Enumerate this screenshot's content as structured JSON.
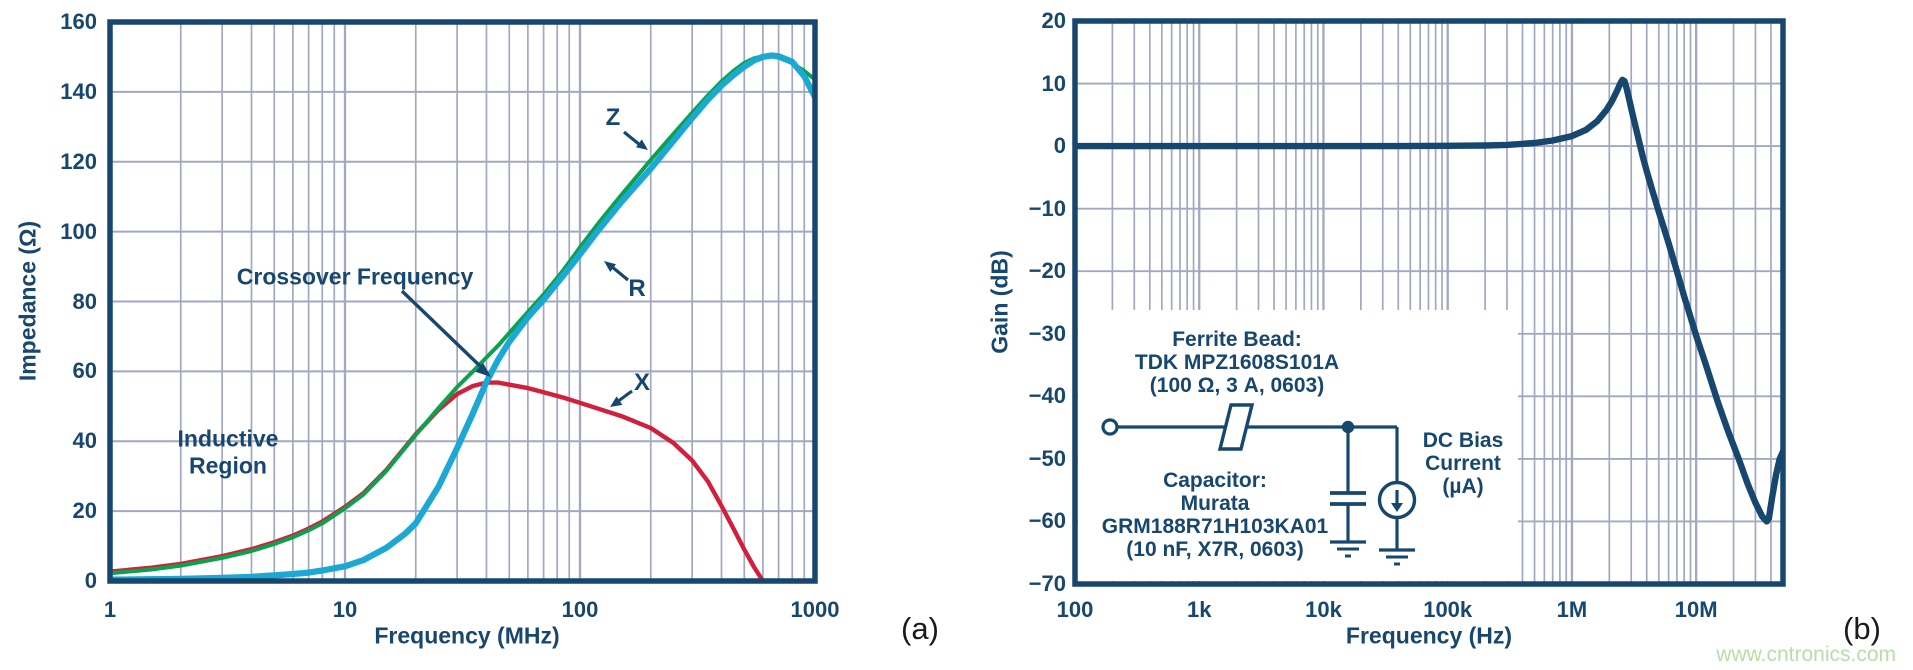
{
  "panels": {
    "a_label": "(a)",
    "b_label": "(b)"
  },
  "watermark": {
    "text": "www.cntronics.com",
    "color": "#b7dda8"
  },
  "colors": {
    "navy": "#17476f",
    "grid": "#a2a8c0",
    "green": "#0ca14d",
    "cyan": "#1ba8d5",
    "red": "#d2203c"
  },
  "chart_data": [
    {
      "id": "a",
      "type": "line",
      "x_scale": "log",
      "xlabel": "Frequency (MHz)",
      "ylabel": "Impedance (Ω)",
      "xlim": [
        1,
        1000
      ],
      "ylim": [
        0,
        160
      ],
      "grid": true,
      "xticks": [
        [
          "1",
          1
        ],
        [
          "10",
          10
        ],
        [
          "100",
          100
        ],
        [
          "1000",
          1000
        ]
      ],
      "yticks": [
        [
          "0",
          0
        ],
        [
          "20",
          20
        ],
        [
          "40",
          40
        ],
        [
          "60",
          60
        ],
        [
          "80",
          80
        ],
        [
          "100",
          100
        ],
        [
          "120",
          120
        ],
        [
          "140",
          140
        ],
        [
          "160",
          160
        ]
      ],
      "annotations": {
        "crossover": "Crossover Frequency",
        "inductive_line1": "Inductive",
        "inductive_line2": "Region",
        "label_z": "Z",
        "label_r": "R",
        "label_x": "X"
      },
      "series": [
        {
          "name": "X",
          "color_key": "red",
          "width": 4.4,
          "points": [
            [
              1,
              2.7
            ],
            [
              1.5,
              3.8
            ],
            [
              2,
              4.9
            ],
            [
              3,
              7.1
            ],
            [
              4,
              9.1
            ],
            [
              5,
              11.1
            ],
            [
              6,
              13
            ],
            [
              7,
              15
            ],
            [
              8,
              17
            ],
            [
              10,
              21.2
            ],
            [
              12,
              25.2
            ],
            [
              15,
              31.8
            ],
            [
              20,
              42
            ],
            [
              25,
              49
            ],
            [
              30,
              53.5
            ],
            [
              35,
              55.8
            ],
            [
              40,
              56.8
            ],
            [
              45,
              56.8
            ],
            [
              50,
              56.2
            ],
            [
              60,
              55.2
            ],
            [
              70,
              54
            ],
            [
              85,
              52.5
            ],
            [
              100,
              51
            ],
            [
              120,
              49.3
            ],
            [
              150,
              47.2
            ],
            [
              200,
              43.8
            ],
            [
              250,
              39.5
            ],
            [
              300,
              34.5
            ],
            [
              350,
              28.5
            ],
            [
              400,
              21.5
            ],
            [
              450,
              15
            ],
            [
              500,
              9
            ],
            [
              550,
              4
            ],
            [
              600,
              0
            ]
          ]
        },
        {
          "name": "Z",
          "color_key": "green",
          "width": 4,
          "points": [
            [
              1,
              2.2
            ],
            [
              1.5,
              3.3
            ],
            [
              2,
              4.4
            ],
            [
              3,
              6.6
            ],
            [
              4,
              8.6
            ],
            [
              5,
              10.6
            ],
            [
              6,
              12.5
            ],
            [
              7,
              14.5
            ],
            [
              8,
              16.5
            ],
            [
              10,
              20.8
            ],
            [
              12,
              24.8
            ],
            [
              15,
              31.5
            ],
            [
              20,
              41.8
            ],
            [
              25,
              49.5
            ],
            [
              30,
              55.5
            ],
            [
              35,
              60
            ],
            [
              40,
              64
            ],
            [
              45,
              67.5
            ],
            [
              50,
              71
            ],
            [
              60,
              77
            ],
            [
              70,
              82
            ],
            [
              85,
              89
            ],
            [
              100,
              95.5
            ],
            [
              120,
              102.5
            ],
            [
              150,
              110.5
            ],
            [
              200,
              120.5
            ],
            [
              250,
              128
            ],
            [
              300,
              134
            ],
            [
              350,
              139
            ],
            [
              400,
              143
            ],
            [
              450,
              146
            ],
            [
              500,
              148.3
            ],
            [
              550,
              149.6
            ],
            [
              600,
              150.2
            ],
            [
              650,
              150.2
            ],
            [
              700,
              149.8
            ],
            [
              800,
              148.2
            ],
            [
              900,
              146
            ],
            [
              1000,
              143.5
            ]
          ]
        },
        {
          "name": "R",
          "color_key": "cyan",
          "width": 6.2,
          "points": [
            [
              1,
              0.4
            ],
            [
              2,
              0.6
            ],
            [
              3,
              0.9
            ],
            [
              4,
              1.2
            ],
            [
              5,
              1.6
            ],
            [
              6,
              2
            ],
            [
              7,
              2.4
            ],
            [
              8,
              3
            ],
            [
              10,
              4.2
            ],
            [
              12,
              6
            ],
            [
              15,
              9.5
            ],
            [
              18,
              13.5
            ],
            [
              20,
              16.5
            ],
            [
              25,
              27
            ],
            [
              30,
              38
            ],
            [
              35,
              48
            ],
            [
              40,
              57
            ],
            [
              45,
              63.5
            ],
            [
              50,
              68.5
            ],
            [
              60,
              75.5
            ],
            [
              70,
              80.5
            ],
            [
              85,
              87.5
            ],
            [
              100,
              93.5
            ],
            [
              120,
              100.5
            ],
            [
              150,
              108.5
            ],
            [
              200,
              118
            ],
            [
              250,
              126
            ],
            [
              300,
              132.5
            ],
            [
              350,
              137.8
            ],
            [
              400,
              141.8
            ],
            [
              450,
              144.8
            ],
            [
              500,
              147.2
            ],
            [
              550,
              149
            ],
            [
              600,
              150
            ],
            [
              650,
              150.4
            ],
            [
              700,
              150.2
            ],
            [
              800,
              148.6
            ],
            [
              900,
              144.5
            ],
            [
              1000,
              138.5
            ]
          ]
        }
      ]
    },
    {
      "id": "b",
      "type": "line",
      "x_scale": "log",
      "xlabel": "Frequency (Hz)",
      "ylabel": "Gain (dB)",
      "xlim": [
        100,
        50000000
      ],
      "ylim": [
        -70,
        20
      ],
      "grid": true,
      "xticks": [
        [
          "100",
          100
        ],
        [
          "1k",
          1000
        ],
        [
          "10k",
          10000
        ],
        [
          "100k",
          100000
        ],
        [
          "1M",
          1000000
        ],
        [
          "10M",
          10000000
        ]
      ],
      "yticks": [
        [
          "−70",
          -70
        ],
        [
          "−60",
          -60
        ],
        [
          "−50",
          -50
        ],
        [
          "−40",
          -40
        ],
        [
          "−30",
          -30
        ],
        [
          "−20",
          -20
        ],
        [
          "−10",
          -10
        ],
        [
          "0",
          0
        ],
        [
          "10",
          10
        ],
        [
          "20",
          20
        ]
      ],
      "inset": {
        "ferrite_lines": [
          "Ferrite Bead:",
          "TDK MPZ1608S101A",
          "(100 Ω, 3 A, 0603)"
        ],
        "capacitor_lines": [
          "Capacitor:",
          "Murata",
          "GRM188R71H103KA01",
          "(10 nF, X7R, 0603)"
        ],
        "dc_bias_lines": [
          "DC Bias",
          "Current",
          "(µA)"
        ]
      },
      "series": [
        {
          "name": "Gain",
          "color_key": "navy",
          "width": 6.4,
          "points": [
            [
              100,
              0
            ],
            [
              300,
              0
            ],
            [
              1000,
              0
            ],
            [
              3000,
              0
            ],
            [
              10000,
              0
            ],
            [
              30000,
              0
            ],
            [
              100000,
              0.05
            ],
            [
              200000,
              0.1
            ],
            [
              300000,
              0.2
            ],
            [
              500000,
              0.5
            ],
            [
              700000,
              0.9
            ],
            [
              1000000,
              1.6
            ],
            [
              1300000,
              2.6
            ],
            [
              1600000,
              4
            ],
            [
              1900000,
              5.8
            ],
            [
              2100000,
              7.2
            ],
            [
              2300000,
              8.8
            ],
            [
              2450000,
              10
            ],
            [
              2550000,
              10.6
            ],
            [
              2650000,
              10.4
            ],
            [
              2750000,
              9.3
            ],
            [
              2900000,
              7.3
            ],
            [
              3100000,
              4.8
            ],
            [
              3400000,
              1.5
            ],
            [
              3700000,
              -1.5
            ],
            [
              4000000,
              -4
            ],
            [
              4500000,
              -7.5
            ],
            [
              5000000,
              -10.5
            ],
            [
              6000000,
              -15.5
            ],
            [
              7000000,
              -20
            ],
            [
              8000000,
              -24
            ],
            [
              9000000,
              -27.3
            ],
            [
              10000000,
              -30.3
            ],
            [
              12000000,
              -35
            ],
            [
              15000000,
              -41
            ],
            [
              18000000,
              -45.5
            ],
            [
              22000000,
              -50
            ],
            [
              26000000,
              -54
            ],
            [
              30000000,
              -57
            ],
            [
              34000000,
              -59.2
            ],
            [
              37000000,
              -60
            ],
            [
              38500000,
              -59.5
            ],
            [
              41000000,
              -56
            ],
            [
              44000000,
              -52.5
            ],
            [
              47000000,
              -50
            ],
            [
              50000000,
              -48.8
            ]
          ]
        }
      ]
    }
  ]
}
